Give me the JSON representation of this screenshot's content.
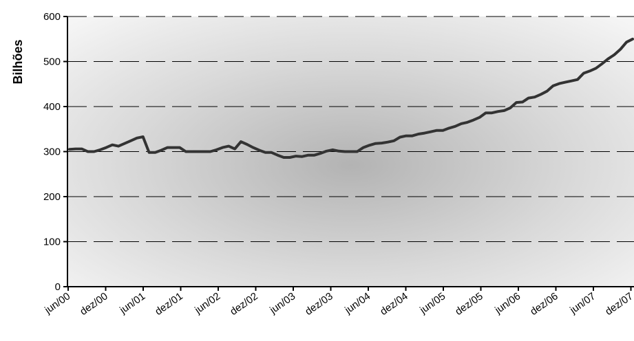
{
  "chart_data": {
    "type": "line",
    "title": "",
    "xlabel": "",
    "ylabel": "Bilhões",
    "ylim": [
      0,
      600
    ],
    "yticks": [
      0,
      100,
      200,
      300,
      400,
      500,
      600
    ],
    "x_tick_labels": [
      "jun/00",
      "dez/00",
      "jun/01",
      "dez/01",
      "jun/02",
      "dez/02",
      "jun/03",
      "dez/03",
      "jun/04",
      "dez/04",
      "jun/05",
      "dez/05",
      "jun/06",
      "dez/06",
      "jun/07",
      "dez/07"
    ],
    "grid": "horizontal dashed",
    "legend": "none",
    "colors": {
      "line": "#333333",
      "gridline": "#000000",
      "background_center": "#b3b3b3",
      "background_edge": "#f5f5f5"
    },
    "series": [
      {
        "values": [
          305,
          306,
          306,
          300,
          300,
          304,
          309,
          315,
          312,
          318,
          324,
          330,
          333,
          298,
          298,
          303,
          309,
          309,
          309,
          300,
          300,
          300,
          300,
          300,
          304,
          309,
          312,
          306,
          322,
          316,
          309,
          303,
          298,
          298,
          292,
          287,
          287,
          290,
          289,
          292,
          292,
          296,
          301,
          304,
          301,
          300,
          300,
          300,
          309,
          314,
          318,
          319,
          321,
          324,
          332,
          335,
          335,
          339,
          341,
          344,
          347,
          347,
          352,
          356,
          362,
          365,
          370,
          376,
          386,
          386,
          389,
          391,
          397,
          409,
          410,
          419,
          421,
          427,
          434,
          446,
          451,
          454,
          457,
          460,
          474,
          479,
          485,
          495,
          506,
          515,
          527,
          543,
          550
        ]
      }
    ]
  }
}
